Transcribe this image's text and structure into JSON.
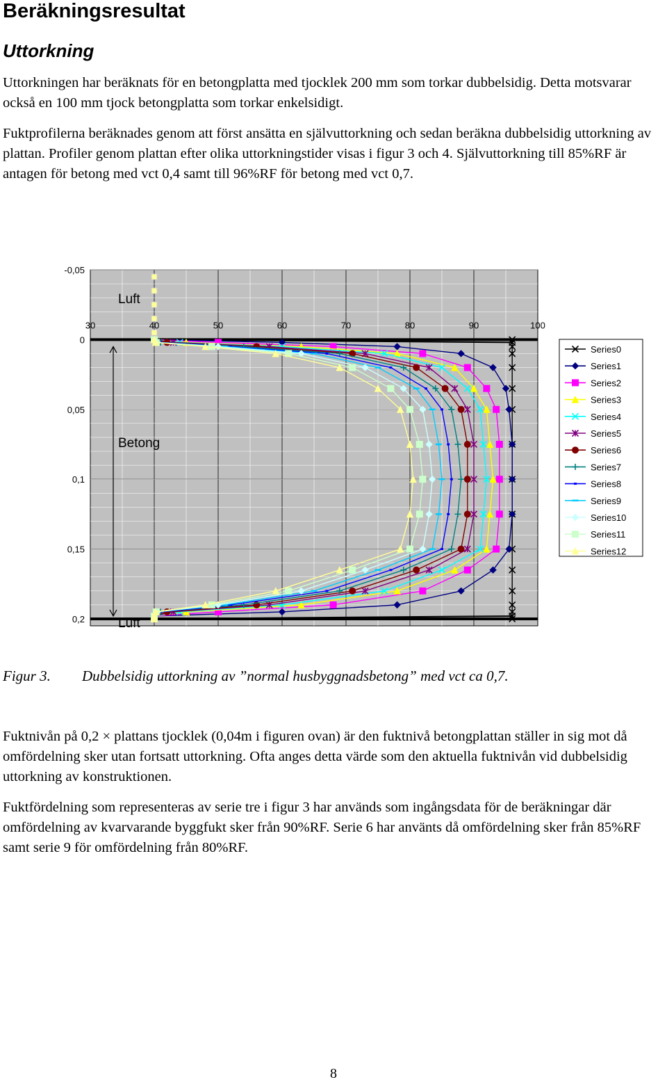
{
  "page": {
    "title": "Beräkningsresultat",
    "section": "Uttorkning",
    "paragraph1": "Uttorkningen har beräknats för en betongplatta med tjocklek 200 mm som torkar dubbelsidig. Detta motsvarar också en 100 mm tjock betongplatta som torkar enkelsidigt.",
    "paragraph2": "Fuktprofilerna beräknades genom att först ansätta en självuttorkning och sedan beräkna dubbelsidig uttorkning av plattan. Profiler genom plattan efter olika uttorkningstider visas i figur 3 och 4. Självuttorkning till 85%RF är antagen för betong med vct 0,4 samt till 96%RF för betong med vct 0,7.",
    "figure_label": "Figur 3.",
    "figure_caption": "Dubbelsidig uttorkning av ”normal husbyggnadsbetong” med vct ca 0,7.",
    "paragraph3": "Fuktnivån på 0,2 × plattans tjocklek (0,04m i figuren ovan) är den fuktnivå betongplattan ställer in sig mot då omfördelning sker utan fortsatt uttorkning. Ofta anges detta värde som den aktuella fuktnivån vid dubbelsidig uttorkning av konstruktionen.",
    "paragraph4": "Fuktfördelning som representeras av serie tre i figur 3 har används som ingångsdata för de beräkningar där omfördelning av kvarvarande byggfukt sker från 90%RF. Serie 6 har använts då omfördelning sker från 85%RF samt serie 9 för omfördelning från 80%RF.",
    "page_number": "8"
  },
  "chart_data": {
    "type": "line",
    "x_axis": {
      "ticks": [
        "30",
        "40",
        "50",
        "60",
        "70",
        "80",
        "90",
        "100"
      ],
      "range": [
        30,
        100
      ],
      "position": "top"
    },
    "y_axis": {
      "ticks": [
        "-0,05",
        "0",
        "0,05",
        "0,1",
        "0,15",
        "0,2"
      ],
      "range": [
        -0.05,
        0.205
      ],
      "reversed": true
    },
    "grid": true,
    "legend_position": "right",
    "annotations": {
      "luft_top": "Luft",
      "betong": "Betong",
      "luft_bottom": "Luft"
    },
    "y": [
      0,
      0.002,
      0.005,
      0.01,
      0.02,
      0.035,
      0.05,
      0.075,
      0.1,
      0.125,
      0.15,
      0.165,
      0.18,
      0.19,
      0.195,
      0.198,
      0.2
    ],
    "series": [
      {
        "name": "Series0",
        "color": "#000000",
        "marker": "x",
        "values": [
          96,
          96,
          96,
          96,
          96,
          96,
          96,
          96,
          96,
          96,
          96,
          96,
          96,
          96,
          96,
          96,
          96
        ]
      },
      {
        "name": "Series1",
        "color": "#000080",
        "marker": "diamond",
        "values": [
          40,
          60,
          78,
          88,
          93,
          95,
          95.5,
          96,
          96,
          96,
          95.5,
          93,
          88,
          78,
          60,
          40,
          40
        ]
      },
      {
        "name": "Series2",
        "color": "#ff00ff",
        "marker": "square",
        "values": [
          40,
          50,
          68,
          82,
          89,
          92,
          93.5,
          94,
          94,
          94,
          93.5,
          89,
          82,
          68,
          50,
          40,
          40
        ]
      },
      {
        "name": "Series3",
        "color": "#ffff00",
        "marker": "triangle",
        "values": [
          40,
          45,
          63,
          78,
          87,
          90,
          92,
          92.5,
          93,
          92.5,
          92,
          87,
          78,
          63,
          45,
          40,
          40
        ]
      },
      {
        "name": "Series4",
        "color": "#00ffff",
        "marker": "x",
        "values": [
          40,
          44,
          60,
          76,
          85,
          89,
          91,
          91.5,
          92,
          91.5,
          91,
          85,
          76,
          60,
          44,
          40,
          40
        ]
      },
      {
        "name": "Series5",
        "color": "#800080",
        "marker": "star",
        "values": [
          40,
          43,
          58,
          73,
          83,
          87,
          89,
          90,
          90,
          90,
          89,
          83,
          73,
          58,
          43,
          40,
          40
        ]
      },
      {
        "name": "Series6",
        "color": "#800000",
        "marker": "circle",
        "values": [
          40,
          42,
          56,
          71,
          81,
          85.5,
          88,
          89,
          89,
          89,
          88,
          81,
          71,
          56,
          42,
          40,
          40
        ]
      },
      {
        "name": "Series7",
        "color": "#008080",
        "marker": "plus",
        "values": [
          40,
          41,
          54,
          69,
          79,
          84,
          86.5,
          87.5,
          88,
          87.5,
          86.5,
          79,
          69,
          54,
          41,
          40,
          40
        ]
      },
      {
        "name": "Series8",
        "color": "#0000ff",
        "marker": "dash",
        "values": [
          40,
          41,
          52,
          67,
          77,
          82.5,
          85,
          86,
          86.5,
          86,
          85,
          77,
          67,
          52,
          41,
          40,
          40
        ]
      },
      {
        "name": "Series9",
        "color": "#00ccff",
        "marker": "hline",
        "values": [
          40,
          40.5,
          51,
          65,
          75,
          81,
          83.5,
          84.5,
          85,
          84.5,
          83.5,
          75,
          65,
          51,
          40.5,
          40,
          40
        ]
      },
      {
        "name": "Series10",
        "color": "#ccffff",
        "marker": "diamond",
        "values": [
          40,
          40.5,
          50,
          63,
          73,
          79,
          82,
          83,
          83.5,
          83,
          82,
          73,
          63,
          50,
          40.5,
          40,
          40
        ]
      },
      {
        "name": "Series11",
        "color": "#ccffcc",
        "marker": "square",
        "values": [
          40,
          40.3,
          49,
          61,
          71,
          77,
          80,
          81.5,
          82,
          81.5,
          80,
          71,
          61,
          49,
          40.3,
          40,
          40
        ]
      },
      {
        "name": "Series12",
        "color": "#ffff99",
        "marker": "triangle",
        "values": [
          40,
          40.2,
          48,
          59,
          69,
          75,
          78.5,
          80,
          80.5,
          80,
          78.5,
          69,
          59,
          48,
          40.2,
          40,
          40
        ]
      }
    ]
  }
}
